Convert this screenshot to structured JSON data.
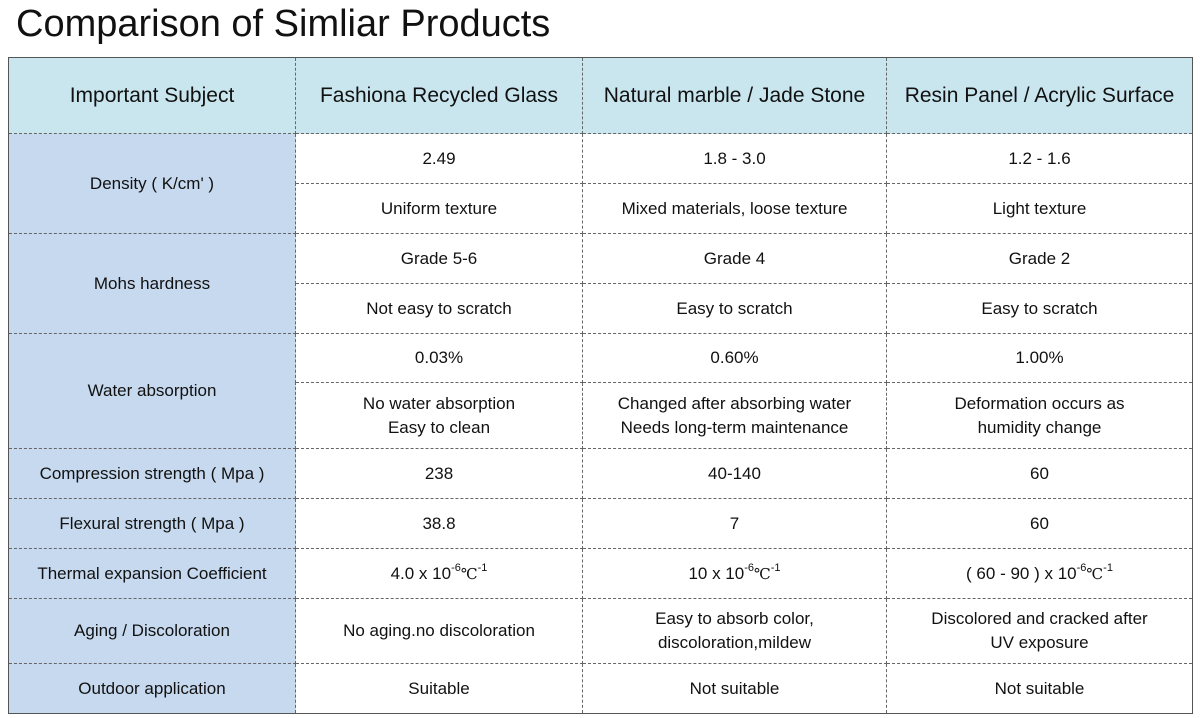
{
  "title": "Comparison of Simliar Products",
  "headers": [
    "Important Subject",
    "Fashiona Recycled Glass",
    "Natural marble / Jade Stone",
    "Resin Panel / Acrylic Surface"
  ],
  "rows": {
    "density": {
      "subject": "Density ( K/cm' )",
      "values": [
        "2.49",
        "1.8 - 3.0",
        "1.2 - 1.6"
      ],
      "notes": [
        "Uniform texture",
        "Mixed materials, loose texture",
        "Light texture"
      ]
    },
    "mohs": {
      "subject": "Mohs hardness",
      "values": [
        "Grade 5-6",
        "Grade 4",
        "Grade 2"
      ],
      "notes": [
        "Not easy to scratch",
        "Easy to scratch",
        "Easy to scratch"
      ]
    },
    "water": {
      "subject": "Water absorption",
      "values": [
        "0.03%",
        "0.60%",
        "1.00%"
      ],
      "notes": [
        [
          "No water absorption",
          "Easy to clean"
        ],
        [
          "Changed after absorbing water",
          "Needs long-term maintenance"
        ],
        [
          "Deformation occurs as",
          "humidity change"
        ]
      ]
    },
    "compression": {
      "subject": "Compression strength ( Mpa )",
      "values": [
        "238",
        "40-140",
        "60"
      ]
    },
    "flexural": {
      "subject": "Flexural strength ( Mpa )",
      "values": [
        "38.8",
        "7",
        "60"
      ]
    },
    "thermal": {
      "subject": "Thermal expansion Coefficient",
      "prefix": [
        "4.0 x 10",
        "10 x 10",
        "( 60 - 90 ) x 10"
      ],
      "exp": "-6",
      "unit": "℃",
      "unit_exp": "-1"
    },
    "aging": {
      "subject": "Aging / Discoloration",
      "values": [
        [
          "No aging.no discoloration"
        ],
        [
          "Easy to absorb color,",
          "discoloration,mildew"
        ],
        [
          "Discolored and cracked after",
          "UV exposure"
        ]
      ]
    },
    "outdoor": {
      "subject": "Outdoor application",
      "values": [
        "Suitable",
        "Not suitable",
        "Not suitable"
      ]
    }
  }
}
